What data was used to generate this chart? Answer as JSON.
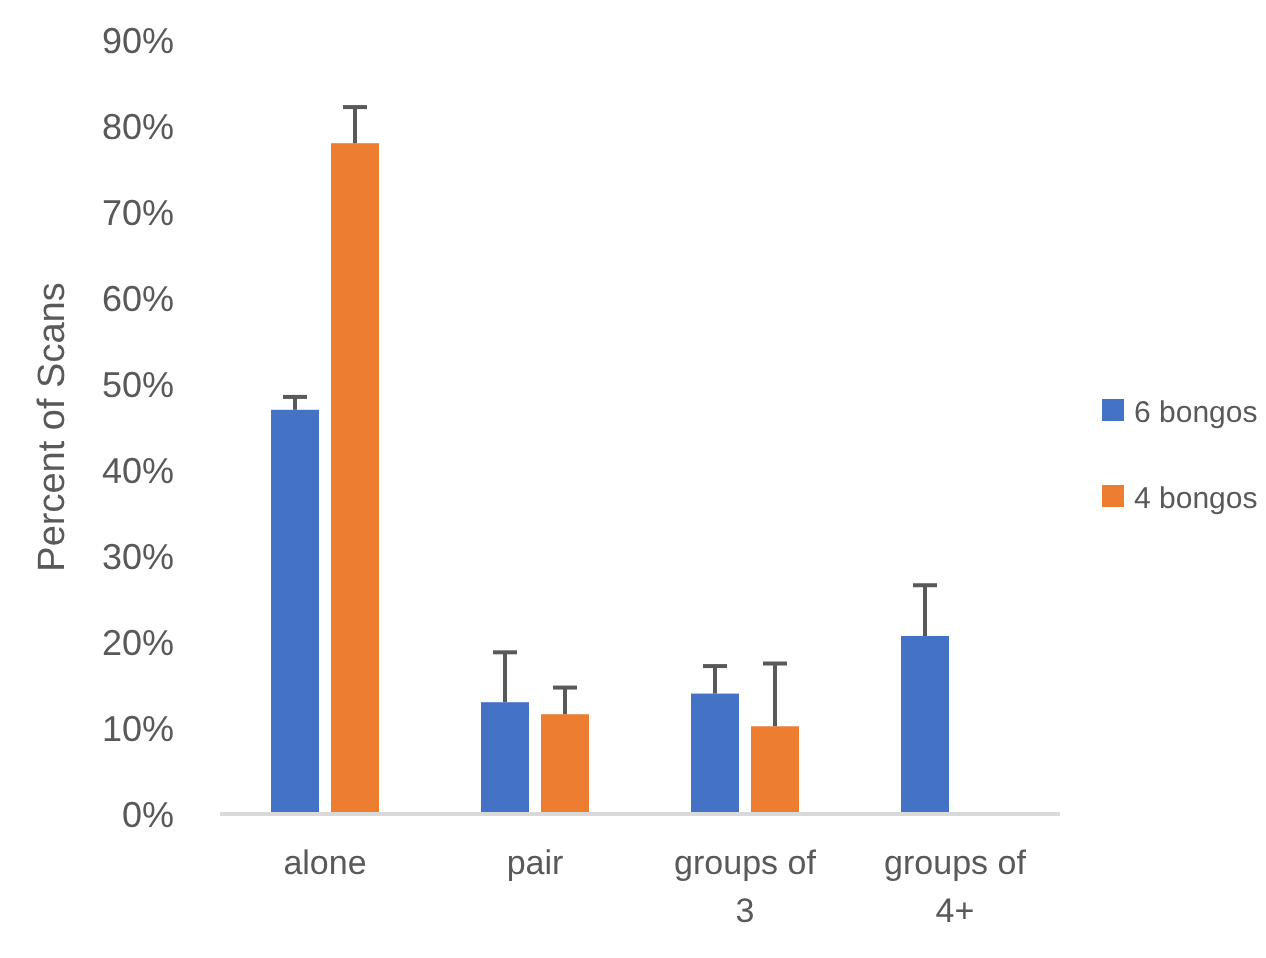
{
  "chart_data": {
    "type": "bar",
    "ylabel": "Percent of Scans",
    "categories": [
      "alone",
      "pair",
      "groups of 3",
      "groups of 4+"
    ],
    "series": [
      {
        "name": "6 bongos",
        "color": "#4472c4",
        "values": [
          47,
          13,
          14,
          20.7
        ],
        "errors": [
          [
            47,
            48.5
          ],
          [
            13,
            18.8
          ],
          [
            14,
            17.2
          ],
          [
            20.7,
            26.6
          ]
        ]
      },
      {
        "name": "4 bongos",
        "color": "#ed7d31",
        "values": [
          78,
          11.6,
          10.2,
          null
        ],
        "errors": [
          [
            78,
            82.2
          ],
          [
            11.6,
            14.7
          ],
          [
            10.2,
            17.5
          ],
          null
        ]
      }
    ],
    "ylim": [
      0,
      90
    ],
    "yticks": [
      {
        "value": 0,
        "label": "0%"
      },
      {
        "value": 10,
        "label": "10%"
      },
      {
        "value": 20,
        "label": "20%"
      },
      {
        "value": 30,
        "label": "30%"
      },
      {
        "value": 40,
        "label": "40%"
      },
      {
        "value": 50,
        "label": "50%"
      },
      {
        "value": 60,
        "label": "60%"
      },
      {
        "value": 70,
        "label": "70%"
      },
      {
        "value": 80,
        "label": "80%"
      },
      {
        "value": 90,
        "label": "90%"
      }
    ],
    "grid": false,
    "legend": "right"
  }
}
